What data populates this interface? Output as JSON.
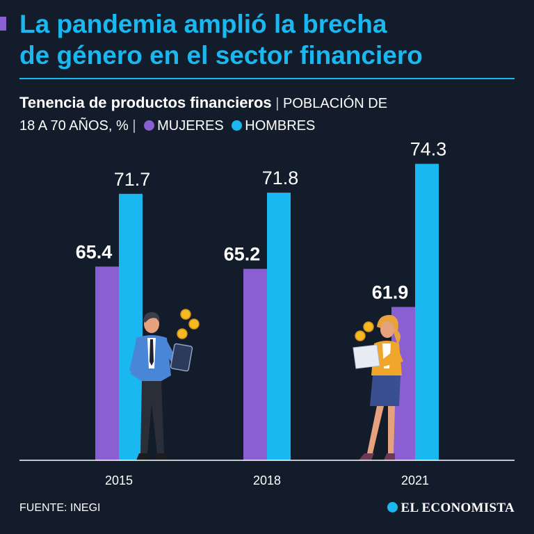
{
  "header": {
    "title_line1": "La pandemia amplió la brecha",
    "title_line2": "de género en el sector financiero"
  },
  "subtitle": {
    "bold": "Tenencia de productos financieros",
    "sep1": "|",
    "text_a": "POBLACIÓN DE",
    "text_b": "18 A 70 AÑOS, %",
    "sep2": "|",
    "legend_women": "MUJERES",
    "legend_men": "HOMBRES"
  },
  "footer": {
    "source": "FUENTE: INEGI",
    "brand": "EL ECONOMISTA"
  },
  "colors": {
    "women": "#8a5fd2",
    "men": "#1ab8f0",
    "title": "#1ab8f0",
    "background": "#131c2a"
  },
  "chart_data": {
    "type": "bar",
    "categories": [
      "2015",
      "2018",
      "2021"
    ],
    "series": [
      {
        "name": "MUJERES",
        "values": [
          65.4,
          65.2,
          61.9
        ],
        "labels": [
          "65.4",
          "65.2",
          "61.9"
        ]
      },
      {
        "name": "HOMBRES",
        "values": [
          71.7,
          71.8,
          74.3
        ],
        "labels": [
          "71.7",
          "71.8",
          "74.3"
        ]
      }
    ],
    "ylim": [
      50,
      76
    ],
    "title": "Tenencia de productos financieros",
    "ylabel": "%",
    "xlabel": ""
  }
}
